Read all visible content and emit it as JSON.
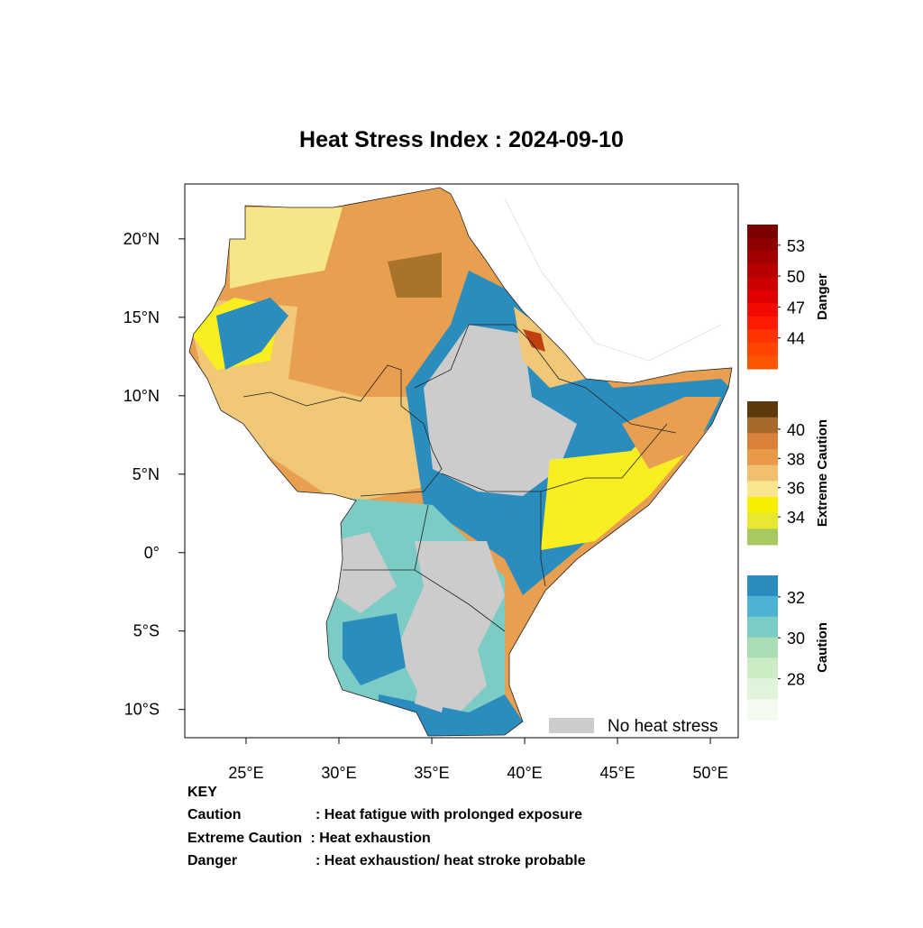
{
  "title": "Heat Stress Index : 2024-09-10",
  "map": {
    "xlim": [
      21.7,
      51.5
    ],
    "ylim": [
      -11.8,
      23.5
    ],
    "xticks": [
      {
        "value": 25,
        "label": "25°E"
      },
      {
        "value": 30,
        "label": "30°E"
      },
      {
        "value": 35,
        "label": "35°E"
      },
      {
        "value": 40,
        "label": "40°E"
      },
      {
        "value": 45,
        "label": "45°E"
      },
      {
        "value": 50,
        "label": "50°E"
      }
    ],
    "yticks": [
      {
        "value": 20,
        "label": "20°N"
      },
      {
        "value": 15,
        "label": "15°N"
      },
      {
        "value": 10,
        "label": "10°N"
      },
      {
        "value": 5,
        "label": "5°N"
      },
      {
        "value": 0,
        "label": "0°"
      },
      {
        "value": -5,
        "label": "5°S"
      },
      {
        "value": -10,
        "label": "10°S"
      }
    ],
    "no_stress_label": "No heat stress",
    "no_stress_color": "#cccccc"
  },
  "colorbars": [
    {
      "name": "Danger",
      "lim": [
        41,
        55
      ],
      "ticks": [
        53,
        50,
        47,
        44
      ],
      "colors": [
        "#7a0000",
        "#8e0000",
        "#a30000",
        "#b80000",
        "#cc0000",
        "#e00000",
        "#f00a00",
        "#ff1a00",
        "#ff3300",
        "#ff4400",
        "#ff5500"
      ]
    },
    {
      "name": "Extreme Caution",
      "lim": [
        32.1,
        41.9
      ],
      "ticks": [
        40,
        38,
        36,
        34
      ],
      "colors": [
        "#5c3a0c",
        "#a86a2a",
        "#d9803a",
        "#e89a48",
        "#f0c070",
        "#f8e690",
        "#f8ee00",
        "#e8e830",
        "#a8c860"
      ]
    },
    {
      "name": "Caution",
      "lim": [
        26,
        33.05
      ],
      "ticks": [
        32,
        30,
        28
      ],
      "colors": [
        "#2b8cbe",
        "#4eb3d3",
        "#7bccc4",
        "#a8ddb5",
        "#ccebc5",
        "#e0f3db",
        "#f3faee"
      ]
    }
  ],
  "key": {
    "title": "KEY",
    "rows": [
      {
        "term": "Caution",
        "desc": ": Heat fatigue with prolonged exposure"
      },
      {
        "term": "Extreme Caution",
        "desc": " : Heat exhaustion"
      },
      {
        "term": "Danger",
        "desc": ": Heat exhaustion/ heat stroke probable"
      }
    ]
  }
}
